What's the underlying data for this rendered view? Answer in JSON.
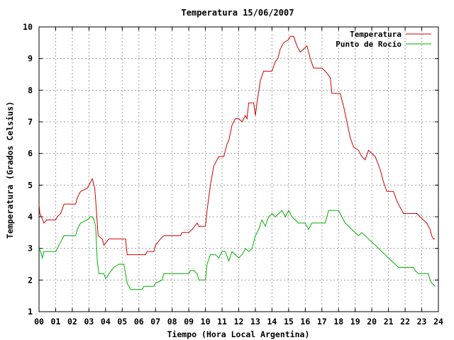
{
  "chart_data": {
    "type": "line",
    "title": "Temperatura 15/06/2007",
    "xlabel": "Tiempo (Hora Local Argentina)",
    "ylabel": "Temperatura (Grados Celsius)",
    "xlim": [
      0,
      24
    ],
    "ylim": [
      1,
      10
    ],
    "grid": true,
    "legend_position": "top-right",
    "x_ticks": [
      "00",
      "01",
      "02",
      "03",
      "04",
      "05",
      "06",
      "07",
      "08",
      "09",
      "10",
      "11",
      "12",
      "13",
      "14",
      "15",
      "16",
      "17",
      "18",
      "19",
      "20",
      "21",
      "22",
      "23",
      "24"
    ],
    "y_ticks": [
      "1",
      "2",
      "3",
      "4",
      "5",
      "6",
      "7",
      "8",
      "9",
      "10"
    ],
    "series": [
      {
        "name": "Temperatura",
        "color": "#d00000",
        "points": [
          [
            0.0,
            4.4
          ],
          [
            0.05,
            4.1
          ],
          [
            0.15,
            4.0
          ],
          [
            0.3,
            3.8
          ],
          [
            0.45,
            3.9
          ],
          [
            1.0,
            3.9
          ],
          [
            1.1,
            4.0
          ],
          [
            1.3,
            4.1
          ],
          [
            1.5,
            4.4
          ],
          [
            2.2,
            4.4
          ],
          [
            2.3,
            4.6
          ],
          [
            2.5,
            4.8
          ],
          [
            2.9,
            4.9
          ],
          [
            3.1,
            5.1
          ],
          [
            3.2,
            5.2
          ],
          [
            3.35,
            4.9
          ],
          [
            3.45,
            4.2
          ],
          [
            3.55,
            3.4
          ],
          [
            3.8,
            3.3
          ],
          [
            3.9,
            3.1
          ],
          [
            4.05,
            3.2
          ],
          [
            4.2,
            3.3
          ],
          [
            5.2,
            3.3
          ],
          [
            5.3,
            2.8
          ],
          [
            6.4,
            2.8
          ],
          [
            6.5,
            2.9
          ],
          [
            6.9,
            2.9
          ],
          [
            7.0,
            3.1
          ],
          [
            7.3,
            3.3
          ],
          [
            7.5,
            3.4
          ],
          [
            8.5,
            3.4
          ],
          [
            8.6,
            3.5
          ],
          [
            9.0,
            3.5
          ],
          [
            9.2,
            3.6
          ],
          [
            9.5,
            3.8
          ],
          [
            9.6,
            3.7
          ],
          [
            10.0,
            3.7
          ],
          [
            10.1,
            4.2
          ],
          [
            10.3,
            5.0
          ],
          [
            10.5,
            5.6
          ],
          [
            10.8,
            5.9
          ],
          [
            11.1,
            5.9
          ],
          [
            11.3,
            6.3
          ],
          [
            11.4,
            6.4
          ],
          [
            11.6,
            6.9
          ],
          [
            11.8,
            7.1
          ],
          [
            12.0,
            7.1
          ],
          [
            12.2,
            7.0
          ],
          [
            12.4,
            7.2
          ],
          [
            12.5,
            7.1
          ],
          [
            12.6,
            7.6
          ],
          [
            12.9,
            7.6
          ],
          [
            13.0,
            7.2
          ],
          [
            13.1,
            7.6
          ],
          [
            13.3,
            8.3
          ],
          [
            13.5,
            8.6
          ],
          [
            13.7,
            8.6
          ],
          [
            14.0,
            8.6
          ],
          [
            14.2,
            8.9
          ],
          [
            14.35,
            9.0
          ],
          [
            14.5,
            9.3
          ],
          [
            14.7,
            9.5
          ],
          [
            15.0,
            9.6
          ],
          [
            15.1,
            9.7
          ],
          [
            15.3,
            9.7
          ],
          [
            15.5,
            9.4
          ],
          [
            15.7,
            9.2
          ],
          [
            15.9,
            9.3
          ],
          [
            16.1,
            9.4
          ],
          [
            16.3,
            9.0
          ],
          [
            16.5,
            8.7
          ],
          [
            17.0,
            8.7
          ],
          [
            17.2,
            8.6
          ],
          [
            17.5,
            8.4
          ],
          [
            17.6,
            7.9
          ],
          [
            18.1,
            7.9
          ],
          [
            18.3,
            7.5
          ],
          [
            18.5,
            7.0
          ],
          [
            18.7,
            6.5
          ],
          [
            18.9,
            6.2
          ],
          [
            19.2,
            6.1
          ],
          [
            19.4,
            5.9
          ],
          [
            19.6,
            5.8
          ],
          [
            19.8,
            6.1
          ],
          [
            20.0,
            6.0
          ],
          [
            20.2,
            5.9
          ],
          [
            20.5,
            5.5
          ],
          [
            20.7,
            5.1
          ],
          [
            20.9,
            4.8
          ],
          [
            21.3,
            4.8
          ],
          [
            21.5,
            4.5
          ],
          [
            21.7,
            4.3
          ],
          [
            21.9,
            4.1
          ],
          [
            22.7,
            4.1
          ],
          [
            22.9,
            4.0
          ],
          [
            23.1,
            3.9
          ],
          [
            23.3,
            3.8
          ],
          [
            23.5,
            3.6
          ],
          [
            23.6,
            3.4
          ],
          [
            23.7,
            3.3
          ],
          [
            23.8,
            3.3
          ]
        ]
      },
      {
        "name": "Punto de Rocío",
        "color": "#00b000",
        "points": [
          [
            0.0,
            3.0
          ],
          [
            0.1,
            2.9
          ],
          [
            0.2,
            2.7
          ],
          [
            0.3,
            2.9
          ],
          [
            1.0,
            2.9
          ],
          [
            1.1,
            3.0
          ],
          [
            1.3,
            3.2
          ],
          [
            1.5,
            3.4
          ],
          [
            2.2,
            3.4
          ],
          [
            2.3,
            3.6
          ],
          [
            2.5,
            3.8
          ],
          [
            2.9,
            3.9
          ],
          [
            3.1,
            4.0
          ],
          [
            3.2,
            4.0
          ],
          [
            3.3,
            3.9
          ],
          [
            3.4,
            3.7
          ],
          [
            3.5,
            2.6
          ],
          [
            3.6,
            2.2
          ],
          [
            3.9,
            2.2
          ],
          [
            4.0,
            2.05
          ],
          [
            4.1,
            2.1
          ],
          [
            4.2,
            2.2
          ],
          [
            4.5,
            2.4
          ],
          [
            4.8,
            2.5
          ],
          [
            5.1,
            2.5
          ],
          [
            5.2,
            2.2
          ],
          [
            5.3,
            1.9
          ],
          [
            5.5,
            1.7
          ],
          [
            6.2,
            1.7
          ],
          [
            6.3,
            1.8
          ],
          [
            6.9,
            1.8
          ],
          [
            7.0,
            1.9
          ],
          [
            7.4,
            2.0
          ],
          [
            7.5,
            2.2
          ],
          [
            8.0,
            2.2
          ],
          [
            8.5,
            2.2
          ],
          [
            9.0,
            2.2
          ],
          [
            9.1,
            2.3
          ],
          [
            9.3,
            2.3
          ],
          [
            9.5,
            2.2
          ],
          [
            9.6,
            2.0
          ],
          [
            10.0,
            2.0
          ],
          [
            10.1,
            2.5
          ],
          [
            10.3,
            2.8
          ],
          [
            10.6,
            2.8
          ],
          [
            10.8,
            2.7
          ],
          [
            11.0,
            2.9
          ],
          [
            11.2,
            2.9
          ],
          [
            11.4,
            2.6
          ],
          [
            11.6,
            2.9
          ],
          [
            11.8,
            2.8
          ],
          [
            12.0,
            2.7
          ],
          [
            12.2,
            2.8
          ],
          [
            12.4,
            3.0
          ],
          [
            12.6,
            2.9
          ],
          [
            12.8,
            3.0
          ],
          [
            13.0,
            3.4
          ],
          [
            13.2,
            3.6
          ],
          [
            13.4,
            3.9
          ],
          [
            13.6,
            3.7
          ],
          [
            13.8,
            4.0
          ],
          [
            14.0,
            4.1
          ],
          [
            14.2,
            4.0
          ],
          [
            14.4,
            4.1
          ],
          [
            14.6,
            4.2
          ],
          [
            14.8,
            4.0
          ],
          [
            15.0,
            4.2
          ],
          [
            15.2,
            4.0
          ],
          [
            15.4,
            3.9
          ],
          [
            15.6,
            3.8
          ],
          [
            16.0,
            3.8
          ],
          [
            16.2,
            3.6
          ],
          [
            16.4,
            3.8
          ],
          [
            16.6,
            3.8
          ],
          [
            17.0,
            3.8
          ],
          [
            17.2,
            3.8
          ],
          [
            17.4,
            4.2
          ],
          [
            17.6,
            4.2
          ],
          [
            17.8,
            4.2
          ],
          [
            18.0,
            4.2
          ],
          [
            18.2,
            4.0
          ],
          [
            18.4,
            3.8
          ],
          [
            18.6,
            3.7
          ],
          [
            18.8,
            3.6
          ],
          [
            19.0,
            3.5
          ],
          [
            19.2,
            3.4
          ],
          [
            19.4,
            3.5
          ],
          [
            19.6,
            3.4
          ],
          [
            19.8,
            3.3
          ],
          [
            20.0,
            3.2
          ],
          [
            20.2,
            3.1
          ],
          [
            20.4,
            3.0
          ],
          [
            20.6,
            2.9
          ],
          [
            20.8,
            2.8
          ],
          [
            21.0,
            2.7
          ],
          [
            21.2,
            2.6
          ],
          [
            21.4,
            2.5
          ],
          [
            21.6,
            2.4
          ],
          [
            22.5,
            2.4
          ],
          [
            22.6,
            2.3
          ],
          [
            22.8,
            2.2
          ],
          [
            23.2,
            2.2
          ],
          [
            23.4,
            2.2
          ],
          [
            23.5,
            2.0
          ],
          [
            23.6,
            1.9
          ],
          [
            23.7,
            1.85
          ],
          [
            23.8,
            1.8
          ]
        ]
      }
    ]
  }
}
